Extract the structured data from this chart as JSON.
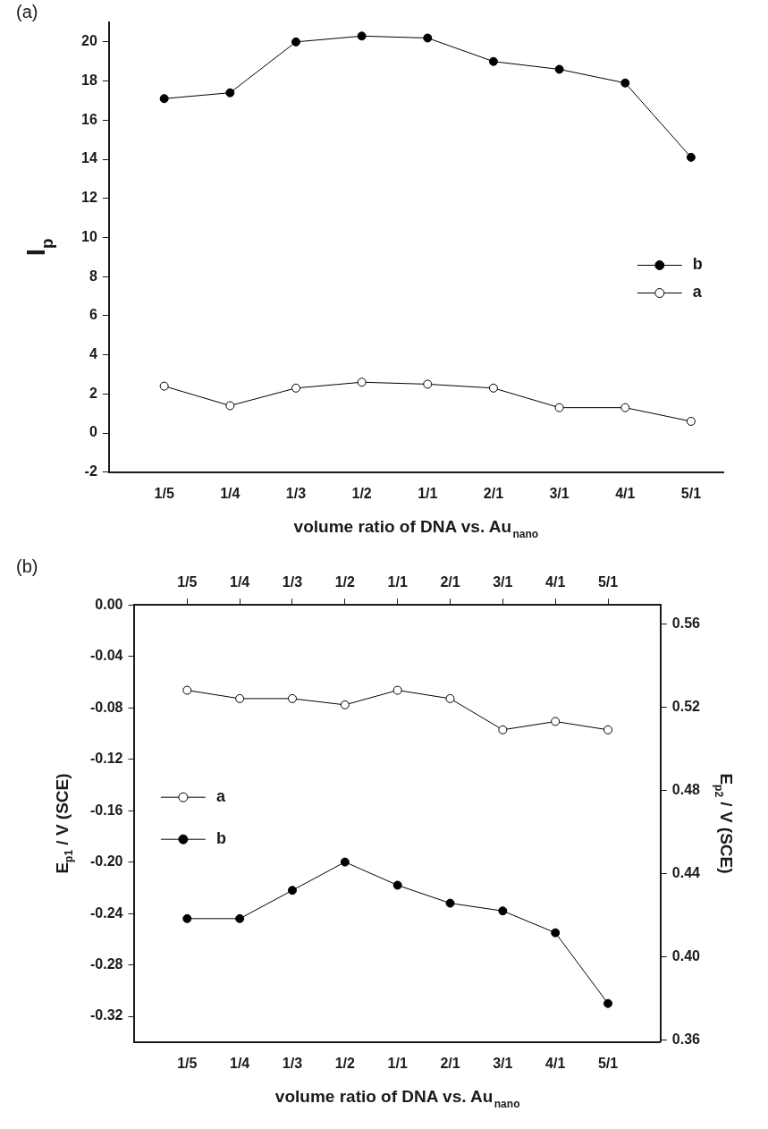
{
  "chart_data": [
    {
      "type": "line",
      "annotations": [
        "(a)"
      ],
      "xlabel": "volume ratio of DNA vs. Au$_{nano}$",
      "ylabel": "I$_{p}$",
      "categories": [
        "1/5",
        "1/4",
        "1/3",
        "1/2",
        "1/1",
        "2/1",
        "3/1",
        "4/1",
        "5/1"
      ],
      "ylim": [
        -2,
        21
      ],
      "yticks": [
        -2,
        0,
        2,
        4,
        6,
        8,
        10,
        12,
        14,
        16,
        18,
        20
      ],
      "legend": "right",
      "marker": "circle",
      "series": [
        {
          "name": "b",
          "color": "#000000",
          "values": [
            17.1,
            17.4,
            20.0,
            20.3,
            20.2,
            19.0,
            18.6,
            17.9,
            14.1
          ]
        },
        {
          "name": "a",
          "color": "#000000",
          "marker": "open circle",
          "values": [
            2.4,
            1.4,
            2.3,
            2.6,
            2.5,
            2.3,
            1.3,
            1.3,
            0.6
          ]
        }
      ]
    },
    {
      "type": "line",
      "annotations": [
        "(b)"
      ],
      "xlabel": "volume ratio of DNA vs. Au$_{nano}$",
      "ylabel": "E$_{p1}$ / V (SCE)",
      "y2label": "E$_{p2}$ / V (SCE)",
      "categories": [
        "1/5",
        "1/4",
        "1/3",
        "1/2",
        "1/1",
        "2/1",
        "3/1",
        "4/1",
        "5/1"
      ],
      "ylim": [
        -0.34,
        0
      ],
      "yticks": [
        {
          "value": -0.32,
          "label": "-0.32"
        },
        {
          "value": -0.28,
          "label": "-0.28"
        },
        {
          "value": -0.24,
          "label": "-0.24"
        },
        {
          "value": -0.2,
          "label": "-0.20"
        },
        {
          "value": -0.16,
          "label": "-0.16"
        },
        {
          "value": -0.12,
          "label": "-0.12"
        },
        {
          "value": -0.08,
          "label": "-0.08"
        },
        {
          "value": -0.04,
          "label": "-0.04"
        },
        {
          "value": 0,
          "label": "0.00"
        }
      ],
      "y2lim": [
        0.359,
        0.569
      ],
      "y2ticks": [
        {
          "value": 0.36,
          "label": "0.36"
        },
        {
          "value": 0.4,
          "label": "0.40"
        },
        {
          "value": 0.44,
          "label": "0.44"
        },
        {
          "value": 0.48,
          "label": "0.48"
        },
        {
          "value": 0.52,
          "label": "0.52"
        },
        {
          "value": 0.56,
          "label": "0.56"
        }
      ],
      "legend": "left",
      "marker": "circle",
      "series": [
        {
          "name": "a",
          "color": "#000000",
          "marker": "open circle",
          "axis": "y2",
          "values": [
            0.528,
            0.524,
            0.524,
            0.521,
            0.528,
            0.524,
            0.509,
            0.513,
            0.509
          ]
        },
        {
          "name": "b",
          "color": "#000000",
          "values": [
            -0.244,
            -0.244,
            -0.222,
            -0.2,
            -0.218,
            -0.232,
            -0.238,
            -0.255,
            -0.31
          ]
        }
      ]
    }
  ]
}
